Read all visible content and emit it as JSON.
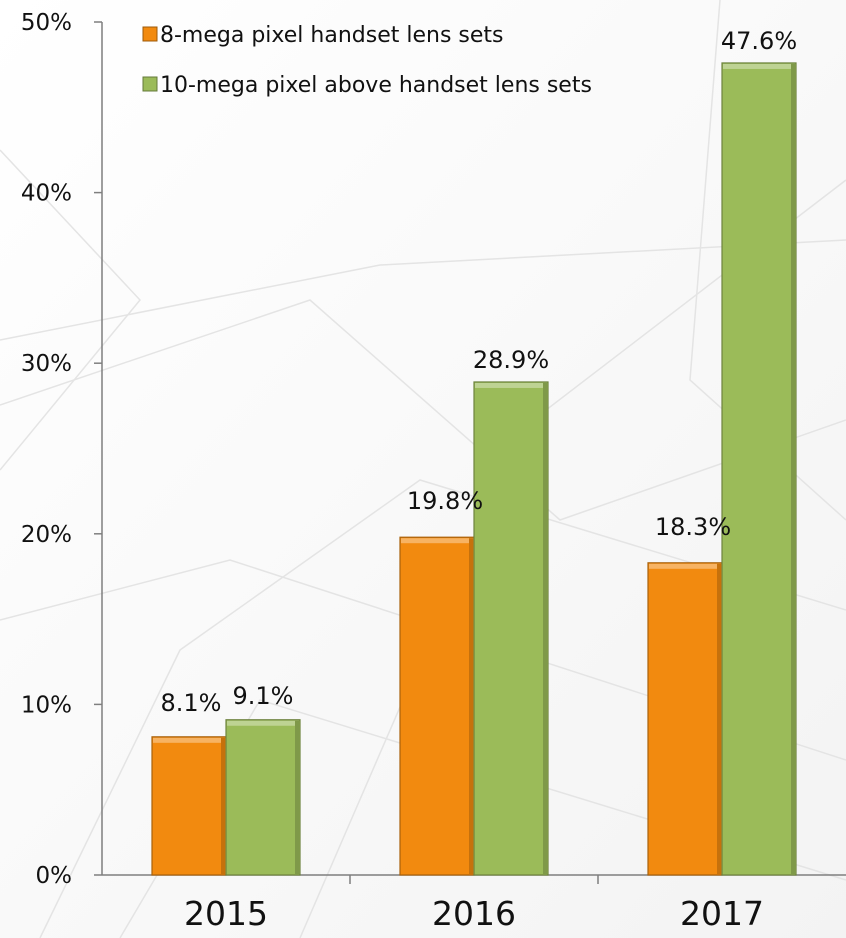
{
  "chart_data": {
    "type": "bar",
    "categories": [
      "2015",
      "2016",
      "2017"
    ],
    "series": [
      {
        "name": "8-mega pixel handset lens sets",
        "values": [
          8.1,
          19.8,
          18.3
        ],
        "labels": [
          "8.1%",
          "19.8%",
          "18.3%"
        ],
        "color": "#f28a0f"
      },
      {
        "name": "10-mega pixel above handset lens sets",
        "values": [
          9.1,
          28.9,
          47.6
        ],
        "labels": [
          "9.1%",
          "28.9%",
          "47.6%"
        ],
        "color": "#9bbb59"
      }
    ],
    "title": "",
    "xlabel": "",
    "ylabel": "",
    "ylim": [
      0,
      50
    ],
    "yticks": [
      "0%",
      "10%",
      "20%",
      "30%",
      "40%",
      "50%"
    ],
    "grid": false,
    "legend": "top-left"
  }
}
